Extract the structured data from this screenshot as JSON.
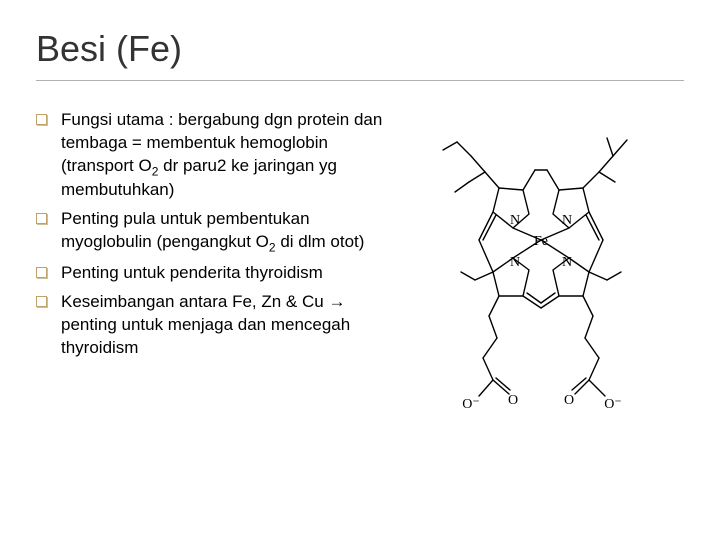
{
  "title": "Besi (Fe)",
  "bullets": [
    "Fungsi utama : bergabung dgn protein dan tembaga = membentuk hemoglobin (transport O₂ dr paru2 ke jaringan yg membutuhkan)",
    "Penting pula untuk pembentukan myoglobulin (pengangkut O₂ di dlm otot)",
    "Penting untuk penderita thyroidism",
    "Keseimbangan antara Fe, Zn & Cu → penting untuk menjaga dan mencegah thyroidism"
  ],
  "bullets_html": [
    "Fungsi utama : bergabung dgn protein dan tembaga = membentuk hemoglobin (transport O<span class=\"sub\">2</span> dr paru2 ke jaringan yg membutuhkan)",
    "Penting pula untuk pembentukan myoglobulin (pengangkut O<span class=\"sub\">2</span> di dlm otot)",
    "Penting untuk penderita thyroidism",
    "Keseimbangan antara Fe, Zn & Cu <span class=\"arrow\">&rarr;</span> penting untuk menjaga dan mencegah thyroidism"
  ],
  "figure": {
    "type": "chemical-structure",
    "label": "heme (Fe-porphyrin)",
    "center_label": "Fe",
    "atom_labels": [
      "N",
      "N",
      "N",
      "N"
    ],
    "peripheral_labels": [
      "O",
      "O⁻",
      "O",
      "O⁻"
    ],
    "stroke_color": "#000000",
    "line_width": 1.4,
    "text_color": "#000000",
    "font_size": 14,
    "background": "#ffffff"
  },
  "colors": {
    "title_text": "#333333",
    "title_rule": "#b0b0b0",
    "bullet_border": "#bfa36a",
    "bullet_shadow": "#d0c090",
    "body_text": "#000000",
    "slide_bg": "#ffffff"
  },
  "typography": {
    "title_fontsize_pt": 27,
    "body_fontsize_pt": 13,
    "font_family": "Verdana"
  },
  "layout": {
    "slide_w": 720,
    "slide_h": 540,
    "text_col_w": 352,
    "figure_w": 280,
    "figure_h": 320
  }
}
